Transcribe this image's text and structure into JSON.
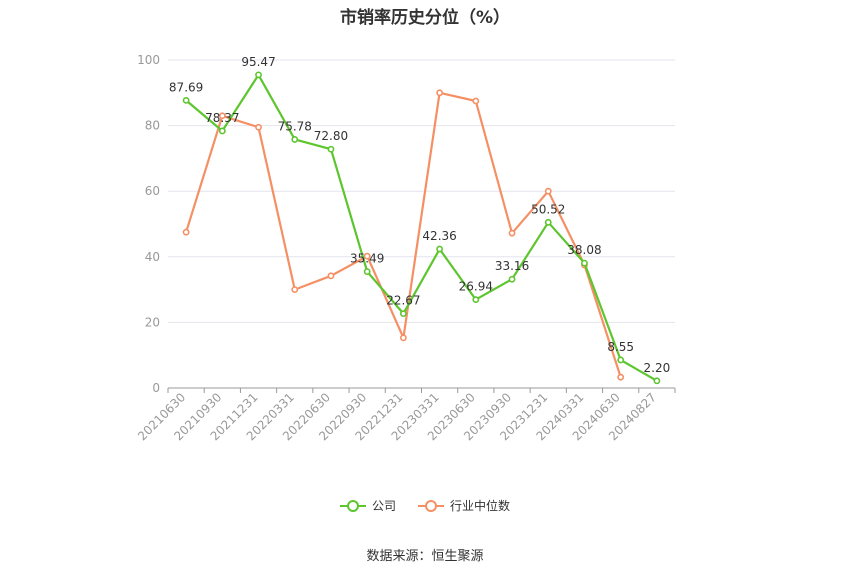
{
  "title": "市销率历史分位（%）",
  "source": "数据来源：恒生聚源",
  "colors": {
    "company": "#5dc52e",
    "industry": "#f58f64",
    "grid": "#e4e4ee",
    "axis_text": "#999999",
    "label_text": "#333333"
  },
  "chart_data": {
    "type": "line",
    "title": "市销率历史分位（%）",
    "categories": [
      "20210630",
      "20210930",
      "20211231",
      "20220331",
      "20220630",
      "20220930",
      "20221231",
      "20230331",
      "20230630",
      "20230930",
      "20231231",
      "20240331",
      "20240630",
      "20240827"
    ],
    "ylim": [
      0,
      100
    ],
    "yticks": [
      0,
      20,
      40,
      60,
      80,
      100
    ],
    "grid": true,
    "legend_position": "bottom",
    "series": [
      {
        "name": "公司",
        "color": "#5dc52e",
        "show_labels": true,
        "values": [
          87.69,
          78.37,
          95.47,
          75.78,
          72.8,
          35.49,
          22.67,
          42.36,
          26.94,
          33.16,
          50.52,
          38.08,
          8.55,
          2.2
        ]
      },
      {
        "name": "行业中位数",
        "color": "#f58f64",
        "show_labels": false,
        "values": [
          47.5,
          83.0,
          79.5,
          30.0,
          34.2,
          40.2,
          15.3,
          90.0,
          87.5,
          47.2,
          60.0,
          37.5,
          3.3,
          null
        ]
      }
    ]
  },
  "legend": [
    {
      "label": "公司",
      "color": "#5dc52e"
    },
    {
      "label": "行业中位数",
      "color": "#f58f64"
    }
  ]
}
